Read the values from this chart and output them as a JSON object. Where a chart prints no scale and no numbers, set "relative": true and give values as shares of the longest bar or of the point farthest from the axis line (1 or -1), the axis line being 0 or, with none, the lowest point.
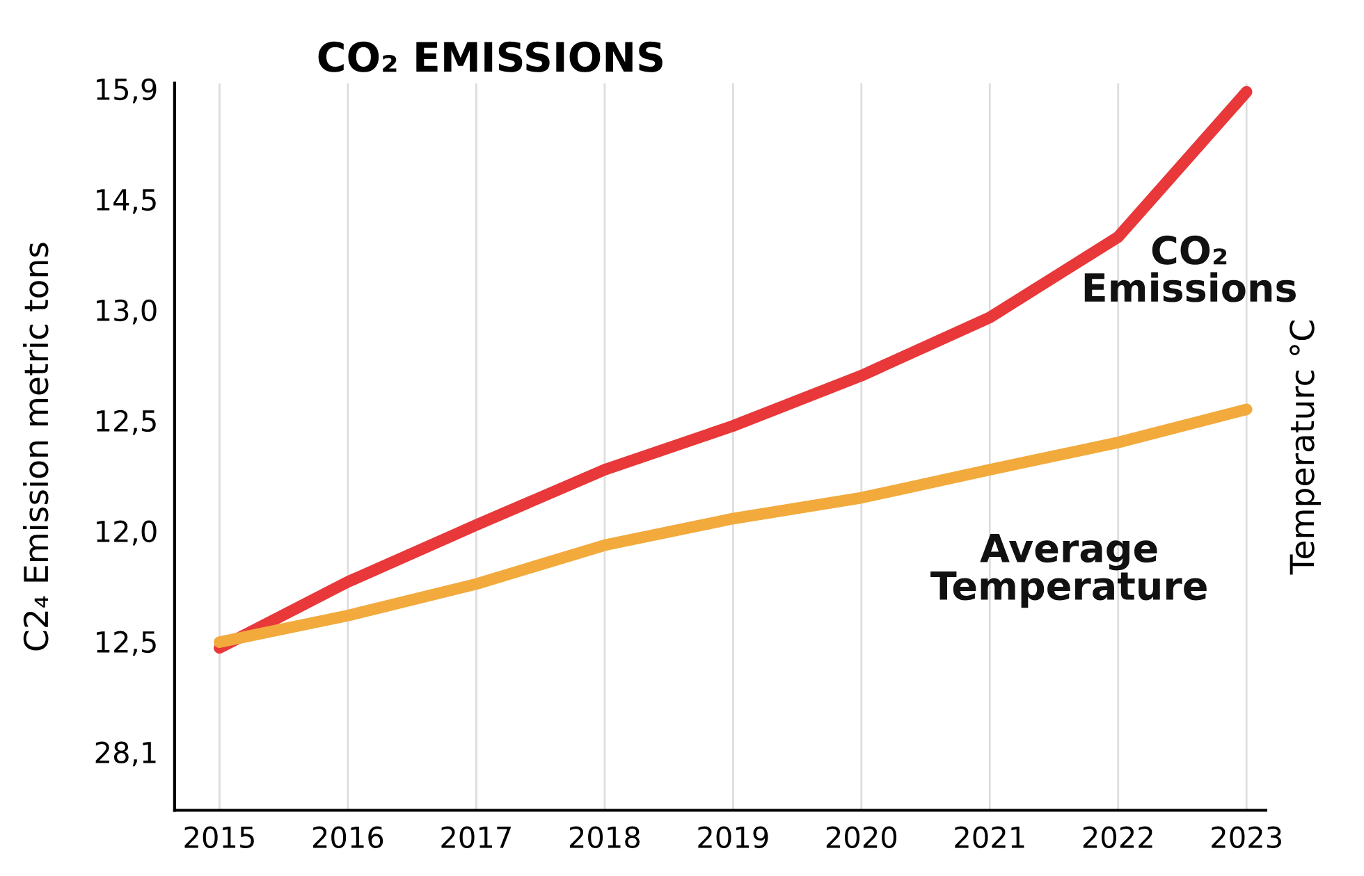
{
  "chart_data": {
    "type": "line",
    "title": "CO₂ EMISSIONS",
    "ylabel": "C2₄ Emission metric tons",
    "y2label": "Temperaturc °C",
    "categories": [
      "2015",
      "2016",
      "2017",
      "2018",
      "2019",
      "2020",
      "2021",
      "2022",
      "2023"
    ],
    "relative": true,
    "series": [
      {
        "name": "CO₂\nEmissions",
        "color": "#e8383a",
        "values": [
          0.226,
          0.318,
          0.397,
          0.474,
          0.535,
          0.605,
          0.686,
          0.798,
          1.0
        ]
      },
      {
        "name": "Average\nTemperature",
        "color": "#f2aa3c",
        "values": [
          0.234,
          0.271,
          0.315,
          0.369,
          0.406,
          0.435,
          0.474,
          0.512,
          0.558
        ]
      }
    ],
    "annotations": [
      "15,9",
      "14,5",
      "13,0",
      "12,5",
      "12,0",
      "12,5",
      "28,1"
    ],
    "grid": "x",
    "legend": false,
    "marker": "none",
    "line_style": "solid"
  }
}
